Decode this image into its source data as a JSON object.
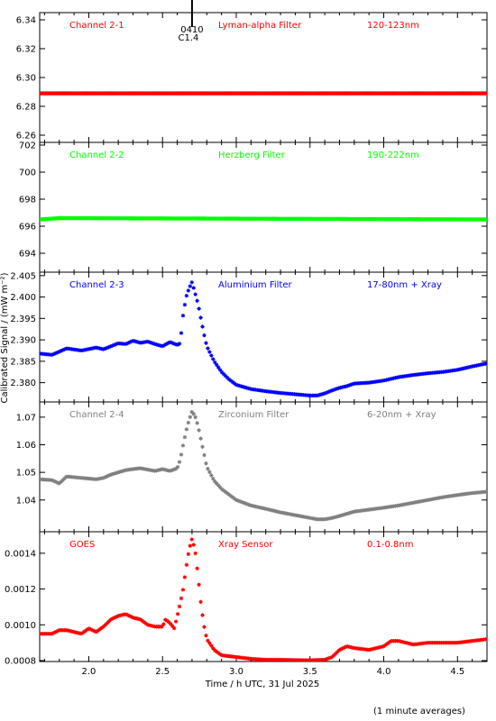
{
  "figure": {
    "xlabel": "Time / h UTC, 31 Jul 2025",
    "ylabel": "Calibrated Signal / (mW m⁻²)",
    "footer_note": "(1 minute averages)",
    "event_marker": {
      "x": 2.7,
      "time_label": "0410",
      "class_label": "C1.4"
    }
  },
  "chart_data": [
    {
      "type": "scatter",
      "panel": "Channel 2-1",
      "filter": "Lyman-alpha Filter",
      "band": "120-123nm",
      "color": "#ff0000",
      "xlim": [
        1.667,
        4.7
      ],
      "ylim": [
        6.255,
        6.345
      ],
      "yticks": [
        6.26,
        6.28,
        6.3,
        6.32,
        6.34
      ],
      "ytick_labels": [
        "6.26",
        "6.28",
        "6.30",
        "6.32",
        "6.34"
      ],
      "series": [
        {
          "x": [
            1.667,
            4.7
          ],
          "y": [
            6.289,
            6.289
          ]
        }
      ]
    },
    {
      "type": "scatter",
      "panel": "Channel 2-2",
      "filter": "Herzberg Filter",
      "band": "190-222nm",
      "color": "#00ff00",
      "xlim": [
        1.667,
        4.7
      ],
      "ylim": [
        692.6,
        702.2
      ],
      "yticks": [
        694,
        696,
        698,
        700,
        702
      ],
      "ytick_labels": [
        "694",
        "696",
        "698",
        "700",
        "702"
      ],
      "series": [
        {
          "x": [
            1.667,
            1.8,
            4.7
          ],
          "y": [
            696.5,
            696.6,
            696.5
          ]
        }
      ]
    },
    {
      "type": "scatter",
      "panel": "Channel 2-3",
      "filter": "Aluminium Filter",
      "band": "17-80nm + Xray",
      "color": "#0000ff",
      "xlim": [
        1.667,
        4.7
      ],
      "ylim": [
        2.3755,
        2.4058
      ],
      "yticks": [
        2.38,
        2.385,
        2.39,
        2.395,
        2.4,
        2.405
      ],
      "ytick_labels": [
        "2.380",
        "2.385",
        "2.390",
        "2.395",
        "2.400",
        "2.405"
      ],
      "series": [
        {
          "x": [
            1.667,
            1.75,
            1.85,
            1.95,
            2.05,
            2.1,
            2.15,
            2.2,
            2.25,
            2.3,
            2.35,
            2.4,
            2.45,
            2.5,
            2.55,
            2.6,
            2.62,
            2.64,
            2.66,
            2.68,
            2.7,
            2.72,
            2.74,
            2.76,
            2.78,
            2.8,
            2.85,
            2.9,
            2.95,
            3.0,
            3.1,
            3.2,
            3.3,
            3.4,
            3.5,
            3.55,
            3.6,
            3.65,
            3.7,
            3.75,
            3.8,
            3.9,
            4.0,
            4.1,
            4.2,
            4.3,
            4.4,
            4.5,
            4.6,
            4.7
          ],
          "y": [
            2.3868,
            2.3865,
            2.388,
            2.3875,
            2.3882,
            2.3878,
            2.3885,
            2.3892,
            2.389,
            2.3898,
            2.3893,
            2.3896,
            2.389,
            2.3885,
            2.3895,
            2.3888,
            2.3892,
            2.396,
            2.4,
            2.402,
            2.4035,
            2.401,
            2.3985,
            2.395,
            2.3915,
            2.3885,
            2.385,
            2.3825,
            2.3808,
            2.3795,
            2.3785,
            2.378,
            2.3776,
            2.3773,
            2.377,
            2.377,
            2.3775,
            2.3782,
            2.3788,
            2.3792,
            2.3798,
            2.38,
            2.3805,
            2.3813,
            2.3818,
            2.3822,
            2.3825,
            2.383,
            2.3838,
            2.3845
          ]
        }
      ]
    },
    {
      "type": "scatter",
      "panel": "Channel 2-4",
      "filter": "Zirconium Filter",
      "band": "6-20nm + Xray",
      "color": "#808080",
      "xlim": [
        1.667,
        4.7
      ],
      "ylim": [
        1.0285,
        1.0755
      ],
      "yticks": [
        1.04,
        1.05,
        1.06,
        1.07
      ],
      "ytick_labels": [
        "1.04",
        "1.05",
        "1.06",
        "1.07"
      ],
      "series": [
        {
          "x": [
            1.667,
            1.75,
            1.8,
            1.85,
            1.95,
            2.05,
            2.1,
            2.15,
            2.2,
            2.25,
            2.3,
            2.35,
            2.4,
            2.45,
            2.5,
            2.55,
            2.6,
            2.62,
            2.64,
            2.66,
            2.68,
            2.7,
            2.72,
            2.74,
            2.76,
            2.78,
            2.8,
            2.85,
            2.9,
            2.95,
            3.0,
            3.1,
            3.2,
            3.3,
            3.4,
            3.5,
            3.55,
            3.6,
            3.65,
            3.7,
            3.75,
            3.8,
            3.9,
            4.0,
            4.1,
            4.2,
            4.3,
            4.4,
            4.5,
            4.6,
            4.7
          ],
          "y": [
            1.0475,
            1.0472,
            1.046,
            1.0485,
            1.048,
            1.0475,
            1.048,
            1.0492,
            1.05,
            1.0508,
            1.0512,
            1.0515,
            1.051,
            1.0505,
            1.0512,
            1.0505,
            1.0515,
            1.0545,
            1.06,
            1.065,
            1.069,
            1.072,
            1.0705,
            1.067,
            1.062,
            1.057,
            1.052,
            1.047,
            1.044,
            1.042,
            1.04,
            1.038,
            1.0368,
            1.0355,
            1.0345,
            1.0335,
            1.033,
            1.033,
            1.0335,
            1.0342,
            1.035,
            1.0358,
            1.0365,
            1.0372,
            1.038,
            1.039,
            1.04,
            1.041,
            1.0418,
            1.0425,
            1.043
          ]
        }
      ]
    },
    {
      "type": "scatter",
      "panel": "GOES",
      "filter": "Xray Sensor",
      "band": "0.1-0.8nm",
      "color": "#ff0000",
      "xlim": [
        1.667,
        4.7
      ],
      "ylim": [
        0.000795,
        0.00152
      ],
      "yticks": [
        0.0008,
        0.001,
        0.0012,
        0.0014
      ],
      "ytick_labels": [
        "0.0008",
        "0.0010",
        "0.0012",
        "0.0014"
      ],
      "series": [
        {
          "x": [
            1.667,
            1.75,
            1.8,
            1.85,
            1.9,
            1.95,
            2.0,
            2.05,
            2.1,
            2.15,
            2.2,
            2.25,
            2.3,
            2.35,
            2.4,
            2.45,
            2.5,
            2.52,
            2.55,
            2.58,
            2.6,
            2.62,
            2.64,
            2.66,
            2.68,
            2.7,
            2.72,
            2.74,
            2.76,
            2.78,
            2.8,
            2.85,
            2.9,
            3.0,
            3.1,
            3.2,
            3.3,
            3.4,
            3.5,
            3.6,
            3.65,
            3.7,
            3.75,
            3.8,
            3.9,
            4.0,
            4.05,
            4.1,
            4.2,
            4.3,
            4.4,
            4.5,
            4.6,
            4.7
          ],
          "y": [
            0.00095,
            0.00095,
            0.00097,
            0.00097,
            0.00096,
            0.00095,
            0.00098,
            0.00096,
            0.00099,
            0.00103,
            0.00105,
            0.00106,
            0.00104,
            0.00103,
            0.001,
            0.00099,
            0.00099,
            0.00103,
            0.00101,
            0.00098,
            0.00105,
            0.00112,
            0.0012,
            0.00132,
            0.00142,
            0.00148,
            0.00142,
            0.00128,
            0.00112,
            0.001,
            0.00092,
            0.00086,
            0.00083,
            0.00082,
            0.00081,
            0.000805,
            0.000805,
            0.000803,
            0.000802,
            0.000805,
            0.00082,
            0.00086,
            0.00088,
            0.00087,
            0.00086,
            0.00088,
            0.00091,
            0.00091,
            0.00089,
            0.0009,
            0.0009,
            0.0009,
            0.00091,
            0.00092
          ]
        }
      ]
    }
  ]
}
